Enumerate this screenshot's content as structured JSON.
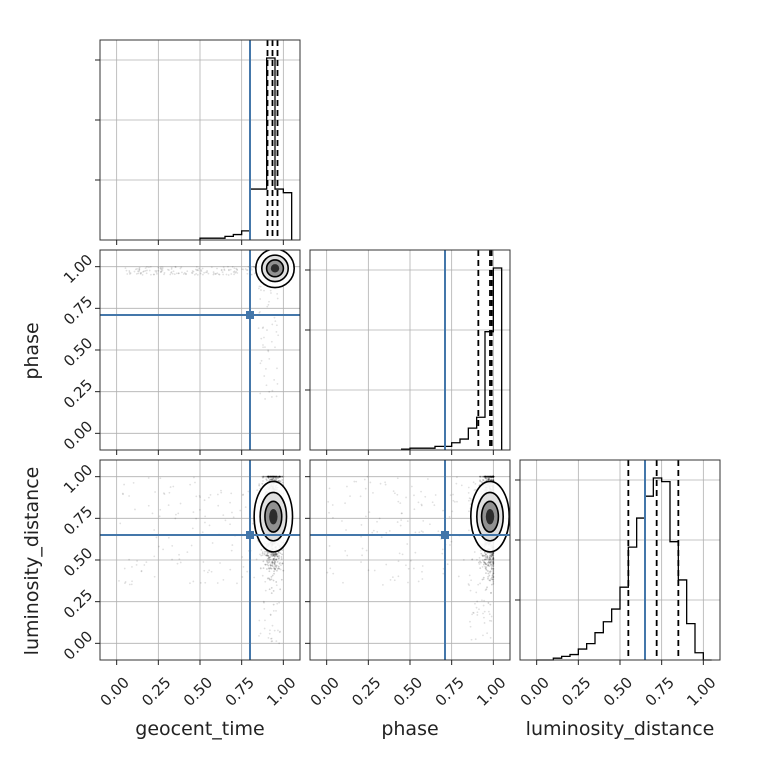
{
  "chart_data": {
    "type": "corner",
    "parameters": [
      "geocent_time",
      "phase",
      "luminosity_distance"
    ],
    "tick_values": [
      0.0,
      0.25,
      0.5,
      0.75,
      1.0
    ],
    "tick_labels": [
      "0.00",
      "0.25",
      "0.50",
      "0.75",
      "1.00"
    ],
    "axis_range": [
      -0.1,
      1.1
    ],
    "grid": true,
    "truths": {
      "geocent_time": 0.8,
      "phase": 0.71,
      "luminosity_distance": 0.65
    },
    "truth_color": "#4477aa",
    "hist_color": "#000000",
    "marginals": [
      {
        "parameter": "geocent_time",
        "bin_edges": [
          0.5,
          0.55,
          0.6,
          0.65,
          0.7,
          0.75,
          0.8,
          0.85,
          0.9,
          0.95,
          1.0,
          1.05
        ],
        "counts": [
          0.01,
          0.01,
          0.01,
          0.02,
          0.03,
          0.05,
          0.28,
          0.28,
          1.0,
          0.28,
          0.26
        ],
        "quantiles": [
          0.905,
          0.935,
          0.965
        ]
      },
      {
        "parameter": "phase",
        "bin_edges": [
          0.45,
          0.5,
          0.55,
          0.6,
          0.65,
          0.7,
          0.75,
          0.8,
          0.85,
          0.9,
          0.95,
          1.0,
          1.05
        ],
        "counts": [
          0.005,
          0.01,
          0.01,
          0.01,
          0.02,
          0.02,
          0.04,
          0.06,
          0.12,
          0.18,
          0.65,
          1.0
        ],
        "quantiles": [
          0.91,
          0.98,
          0.99
        ]
      },
      {
        "parameter": "luminosity_distance",
        "bin_edges": [
          0.0,
          0.05,
          0.1,
          0.15,
          0.2,
          0.25,
          0.3,
          0.35,
          0.4,
          0.45,
          0.5,
          0.55,
          0.6,
          0.65,
          0.7,
          0.75,
          0.8,
          0.85,
          0.9,
          0.95,
          1.0,
          1.05
        ],
        "counts": [
          0.0,
          0.0,
          0.01,
          0.02,
          0.03,
          0.06,
          0.09,
          0.15,
          0.21,
          0.28,
          0.4,
          0.62,
          0.78,
          0.9,
          1.0,
          0.98,
          0.65,
          0.44,
          0.2,
          0.04,
          0.0
        ],
        "quantiles": [
          0.55,
          0.72,
          0.85
        ]
      }
    ],
    "joint": [
      {
        "x": "geocent_time",
        "y": "phase",
        "center": [
          0.95,
          0.99
        ],
        "spread": [
          0.02,
          0.02
        ]
      },
      {
        "x": "geocent_time",
        "y": "luminosity_distance",
        "center": [
          0.94,
          0.76
        ],
        "spread": [
          0.02,
          0.12
        ]
      },
      {
        "x": "phase",
        "y": "luminosity_distance",
        "center": [
          0.98,
          0.76
        ],
        "spread": [
          0.02,
          0.12
        ]
      }
    ]
  }
}
